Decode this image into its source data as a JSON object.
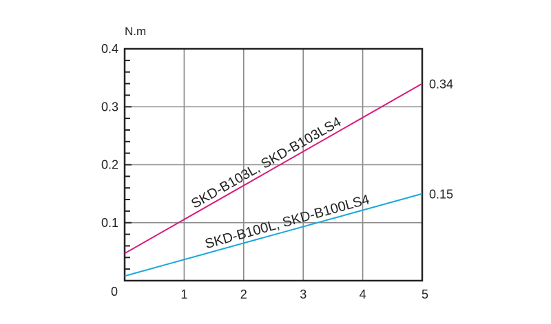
{
  "chart_data": {
    "type": "line",
    "title": "",
    "xlabel": "",
    "ylabel": "N.m",
    "xlim": [
      0,
      5
    ],
    "ylim": [
      0,
      0.4
    ],
    "xticks": [
      "0",
      "1",
      "2",
      "3",
      "4",
      "5"
    ],
    "yticks": [
      "0.1",
      "0.2",
      "0.3",
      "0.4"
    ],
    "grid": true,
    "series": [
      {
        "name": "SKD-B103L, SKD-B103LS4",
        "color": "#d81b7f",
        "x": [
          0,
          5
        ],
        "y": [
          0.047,
          0.34
        ],
        "end_label": "0.34"
      },
      {
        "name": "SKD-B100L, SKD-B100LS4",
        "color": "#1aa7dc",
        "x": [
          0,
          5
        ],
        "y": [
          0.008,
          0.15
        ],
        "end_label": "0.15"
      }
    ]
  }
}
